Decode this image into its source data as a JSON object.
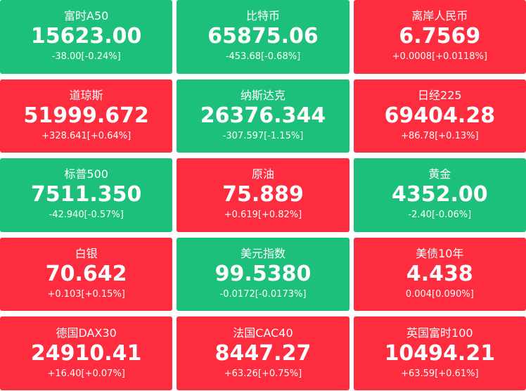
{
  "tiles": [
    {
      "name": "富时A50",
      "price": "15623.00",
      "change": "-38.00[-0.24%]",
      "color": "#1cc07b"
    },
    {
      "name": "比特币",
      "price": "65875.06",
      "change": "-453.68[-0.68%]",
      "color": "#1cc07b"
    },
    {
      "name": "离岸人民币",
      "price": "6.7569",
      "change": "+0.0008[+0.0118%]",
      "color": "#fd2c3e"
    },
    {
      "name": "道琼斯",
      "price": "51999.672",
      "change": "+328.641[+0.64%]",
      "color": "#fd2c3e"
    },
    {
      "name": "纳斯达克",
      "price": "26376.344",
      "change": "-307.597[-1.15%]",
      "color": "#1cc07b"
    },
    {
      "name": "日经225",
      "price": "69404.28",
      "change": "+86.78[+0.13%]",
      "color": "#fd2c3e"
    },
    {
      "name": "标普500",
      "price": "7511.350",
      "change": "-42.940[-0.57%]",
      "color": "#1cc07b"
    },
    {
      "name": "原油",
      "price": "75.889",
      "change": "+0.619[+0.82%]",
      "color": "#fd2c3e"
    },
    {
      "name": "黄金",
      "price": "4352.00",
      "change": "-2.40[-0.06%]",
      "color": "#1cc07b"
    },
    {
      "name": "白银",
      "price": "70.642",
      "change": "+0.103[+0.15%]",
      "color": "#fd2c3e"
    },
    {
      "name": "美元指数",
      "price": "99.5380",
      "change": "-0.0172[-0.0173%]",
      "color": "#1cc07b"
    },
    {
      "name": "美债10年",
      "price": "4.438",
      "change": "0.004[0.090%]",
      "color": "#fd2c3e"
    },
    {
      "name": "德国DAX30",
      "price": "24910.41",
      "change": "+16.40[+0.07%]",
      "color": "#fd2c3e"
    },
    {
      "name": "法国CAC40",
      "price": "8447.27",
      "change": "+63.26[+0.75%]",
      "color": "#fd2c3e"
    },
    {
      "name": "英国富时100",
      "price": "10494.21",
      "change": "+63.59[+0.61%]",
      "color": "#fd2c3e"
    }
  ]
}
